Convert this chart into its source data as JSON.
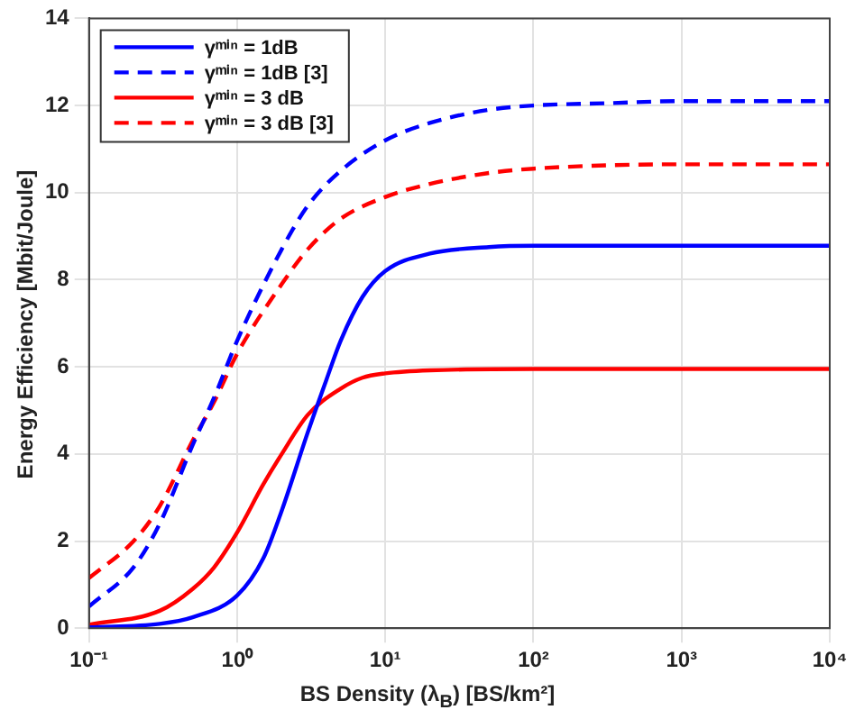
{
  "chart_data": {
    "type": "line",
    "xlabel": "BS Density (λ$_{B}$) [BS/km²]",
    "ylabel": "Energy Efficiency [Mbit/Joule]",
    "log": "x",
    "grid": true,
    "legend": "top left",
    "xlim": [
      0.1,
      10000
    ],
    "xticks": [
      {
        "value": 0.1,
        "label": "10⁻¹"
      },
      {
        "value": 1,
        "label": "10⁰"
      },
      {
        "value": 10,
        "label": "10¹"
      },
      {
        "value": 100,
        "label": "10²"
      },
      {
        "value": 1000,
        "label": "10³"
      },
      {
        "value": 10000,
        "label": "10⁴"
      }
    ],
    "ylim": [
      0,
      14
    ],
    "yticks": [
      0,
      2,
      4,
      6,
      8,
      10,
      12,
      14
    ],
    "series": [
      {
        "name": "γᵐⁱⁿ = 1dB",
        "color": "#0000ff",
        "line_style": "solid",
        "x": [
          0.1,
          0.3,
          0.5,
          1,
          1.5,
          2,
          3,
          4,
          5,
          7,
          10,
          20,
          50,
          100,
          10000
        ],
        "values": [
          0.02,
          0.1,
          0.25,
          0.75,
          1.6,
          2.7,
          4.5,
          5.7,
          6.6,
          7.6,
          8.2,
          8.6,
          8.75,
          8.78,
          8.78
        ]
      },
      {
        "name": "γᵐⁱⁿ = 1dB [3]",
        "color": "#0000ff",
        "line_style": "dashed",
        "x": [
          0.1,
          0.2,
          0.3,
          0.5,
          0.7,
          1,
          2,
          3,
          5,
          10,
          20,
          50,
          100,
          300,
          1000,
          10000
        ],
        "values": [
          0.5,
          1.4,
          2.4,
          4.2,
          5.3,
          6.6,
          8.7,
          9.7,
          10.5,
          11.2,
          11.6,
          11.9,
          12.0,
          12.05,
          12.1,
          12.1
        ]
      },
      {
        "name": "γᵐⁱⁿ = 3 dB",
        "color": "#ff0000",
        "line_style": "solid",
        "x": [
          0.1,
          0.3,
          0.5,
          0.7,
          1,
          1.5,
          2,
          3,
          5,
          7,
          10,
          20,
          100,
          10000
        ],
        "values": [
          0.08,
          0.4,
          0.9,
          1.4,
          2.2,
          3.3,
          4.0,
          4.9,
          5.5,
          5.75,
          5.85,
          5.92,
          5.95,
          5.95
        ]
      },
      {
        "name": "γᵐⁱⁿ = 3 dB [3]",
        "color": "#ff0000",
        "line_style": "dashed",
        "x": [
          0.1,
          0.2,
          0.3,
          0.5,
          0.7,
          1,
          2,
          3,
          5,
          10,
          20,
          50,
          100,
          1000,
          10000
        ],
        "values": [
          1.15,
          2.0,
          2.8,
          4.3,
          5.2,
          6.3,
          7.9,
          8.7,
          9.4,
          9.9,
          10.2,
          10.45,
          10.55,
          10.65,
          10.65
        ]
      }
    ]
  }
}
